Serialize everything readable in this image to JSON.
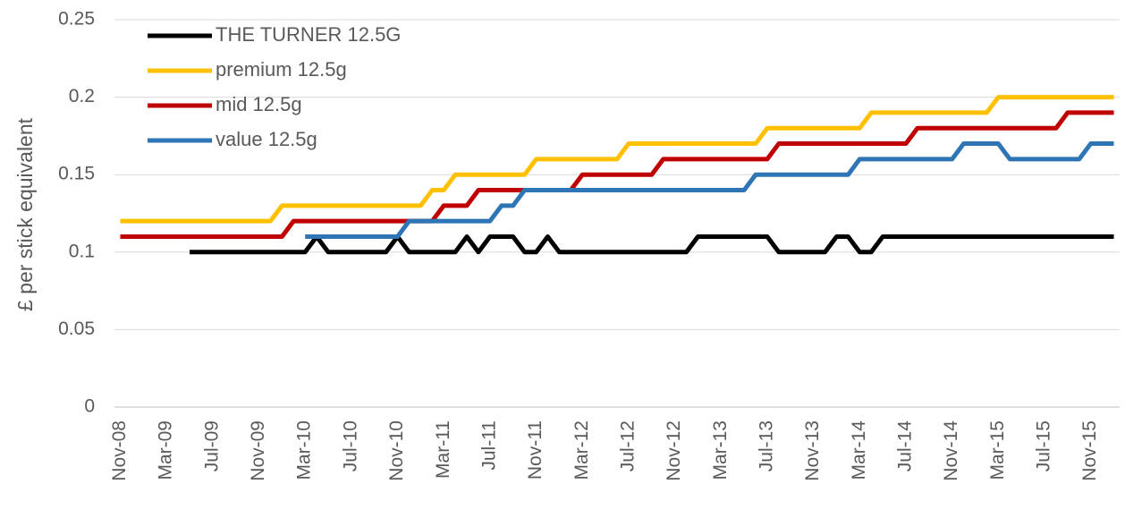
{
  "chart_data": {
    "type": "line",
    "y_label": "£ per stick equivalent",
    "categories": [
      "Nov-08",
      null,
      null,
      null,
      "Mar-09",
      null,
      null,
      null,
      "Jul-09",
      null,
      null,
      null,
      "Nov-09",
      null,
      null,
      null,
      "Mar-10",
      null,
      null,
      null,
      "Jul-10",
      null,
      null,
      null,
      "Nov-10",
      null,
      null,
      null,
      "Mar-11",
      null,
      null,
      null,
      "Jul-11",
      null,
      null,
      null,
      "Nov-11",
      null,
      null,
      null,
      "Mar-12",
      null,
      null,
      null,
      "Jul-12",
      null,
      null,
      null,
      "Nov-12",
      null,
      null,
      null,
      "Mar-13",
      null,
      null,
      null,
      "Jul-13",
      null,
      null,
      null,
      "Nov-13",
      null,
      null,
      null,
      "Mar-14",
      null,
      null,
      null,
      "Jul-14",
      null,
      null,
      null,
      "Nov-14",
      null,
      null,
      null,
      "Mar-15",
      null,
      null,
      null,
      "Jul-15",
      null,
      null,
      null,
      "Nov-15",
      null,
      null
    ],
    "series": [
      {
        "name": "THE TURNER 12.5G",
        "color": "#000000",
        "values": [
          null,
          null,
          null,
          null,
          null,
          null,
          0.1,
          0.1,
          0.1,
          0.1,
          0.1,
          0.1,
          0.1,
          0.1,
          0.1,
          0.1,
          0.1,
          0.11,
          0.1,
          0.1,
          0.1,
          0.1,
          0.1,
          0.1,
          0.11,
          0.1,
          0.1,
          0.1,
          0.1,
          0.1,
          0.11,
          0.1,
          0.11,
          0.11,
          0.11,
          0.1,
          0.1,
          0.11,
          0.1,
          0.1,
          0.1,
          0.1,
          0.1,
          0.1,
          0.1,
          0.1,
          0.1,
          0.1,
          0.1,
          0.1,
          0.11,
          0.11,
          0.11,
          0.11,
          0.11,
          0.11,
          0.11,
          0.1,
          0.1,
          0.1,
          0.1,
          0.1,
          0.11,
          0.11,
          0.1,
          0.1,
          0.11,
          0.11,
          0.11,
          0.11,
          0.11,
          0.11,
          0.11,
          0.11,
          0.11,
          0.11,
          0.11,
          0.11,
          0.11,
          0.11,
          0.11,
          0.11,
          0.11,
          0.11,
          0.11,
          0.11,
          0.11
        ]
      },
      {
        "name": "premium 12.5g",
        "color": "#ffc000",
        "values": [
          0.12,
          0.12,
          0.12,
          0.12,
          0.12,
          0.12,
          0.12,
          0.12,
          0.12,
          0.12,
          0.12,
          0.12,
          0.12,
          0.12,
          0.13,
          0.13,
          0.13,
          0.13,
          0.13,
          0.13,
          0.13,
          0.13,
          0.13,
          0.13,
          0.13,
          0.13,
          0.13,
          0.14,
          0.14,
          0.15,
          0.15,
          0.15,
          0.15,
          0.15,
          0.15,
          0.15,
          0.16,
          0.16,
          0.16,
          0.16,
          0.16,
          0.16,
          0.16,
          0.16,
          0.17,
          0.17,
          0.17,
          0.17,
          0.17,
          0.17,
          0.17,
          0.17,
          0.17,
          0.17,
          0.17,
          0.17,
          0.18,
          0.18,
          0.18,
          0.18,
          0.18,
          0.18,
          0.18,
          0.18,
          0.18,
          0.19,
          0.19,
          0.19,
          0.19,
          0.19,
          0.19,
          0.19,
          0.19,
          0.19,
          0.19,
          0.19,
          0.2,
          0.2,
          0.2,
          0.2,
          0.2,
          0.2,
          0.2,
          0.2,
          0.2,
          0.2,
          0.2
        ]
      },
      {
        "name": "mid 12.5g",
        "color": "#c00000",
        "values": [
          0.11,
          0.11,
          0.11,
          0.11,
          0.11,
          0.11,
          0.11,
          0.11,
          0.11,
          0.11,
          0.11,
          0.11,
          0.11,
          0.11,
          0.11,
          0.12,
          0.12,
          0.12,
          0.12,
          0.12,
          0.12,
          0.12,
          0.12,
          0.12,
          0.12,
          0.12,
          0.12,
          0.12,
          0.13,
          0.13,
          0.13,
          0.14,
          0.14,
          0.14,
          0.14,
          0.14,
          0.14,
          0.14,
          0.14,
          0.14,
          0.15,
          0.15,
          0.15,
          0.15,
          0.15,
          0.15,
          0.15,
          0.16,
          0.16,
          0.16,
          0.16,
          0.16,
          0.16,
          0.16,
          0.16,
          0.16,
          0.16,
          0.17,
          0.17,
          0.17,
          0.17,
          0.17,
          0.17,
          0.17,
          0.17,
          0.17,
          0.17,
          0.17,
          0.17,
          0.18,
          0.18,
          0.18,
          0.18,
          0.18,
          0.18,
          0.18,
          0.18,
          0.18,
          0.18,
          0.18,
          0.18,
          0.18,
          0.19,
          0.19,
          0.19,
          0.19,
          0.19
        ]
      },
      {
        "name": "value 12.5g",
        "color": "#2e75b6",
        "values": [
          null,
          null,
          null,
          null,
          null,
          null,
          null,
          null,
          null,
          null,
          null,
          null,
          null,
          null,
          null,
          null,
          0.11,
          0.11,
          0.11,
          0.11,
          0.11,
          0.11,
          0.11,
          0.11,
          0.11,
          0.12,
          0.12,
          0.12,
          0.12,
          0.12,
          0.12,
          0.12,
          0.12,
          0.13,
          0.13,
          0.14,
          0.14,
          0.14,
          0.14,
          0.14,
          0.14,
          0.14,
          0.14,
          0.14,
          0.14,
          0.14,
          0.14,
          0.14,
          0.14,
          0.14,
          0.14,
          0.14,
          0.14,
          0.14,
          0.14,
          0.15,
          0.15,
          0.15,
          0.15,
          0.15,
          0.15,
          0.15,
          0.15,
          0.15,
          0.16,
          0.16,
          0.16,
          0.16,
          0.16,
          0.16,
          0.16,
          0.16,
          0.16,
          0.17,
          0.17,
          0.17,
          0.17,
          0.16,
          0.16,
          0.16,
          0.16,
          0.16,
          0.16,
          0.16,
          0.17,
          0.17,
          0.17
        ]
      }
    ],
    "ylim": [
      0,
      0.25
    ],
    "yticks": [
      0,
      0.05,
      0.1,
      0.15,
      0.2,
      0.25
    ],
    "grid": true,
    "legend": "top-left"
  }
}
